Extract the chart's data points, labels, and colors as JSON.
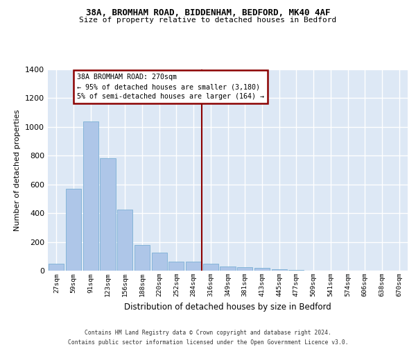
{
  "title1": "38A, BROMHAM ROAD, BIDDENHAM, BEDFORD, MK40 4AF",
  "title2": "Size of property relative to detached houses in Bedford",
  "xlabel": "Distribution of detached houses by size in Bedford",
  "ylabel": "Number of detached properties",
  "categories": [
    "27sqm",
    "59sqm",
    "91sqm",
    "123sqm",
    "156sqm",
    "188sqm",
    "220sqm",
    "252sqm",
    "284sqm",
    "316sqm",
    "349sqm",
    "381sqm",
    "413sqm",
    "445sqm",
    "477sqm",
    "509sqm",
    "541sqm",
    "574sqm",
    "606sqm",
    "638sqm",
    "670sqm"
  ],
  "values": [
    50,
    570,
    1040,
    780,
    425,
    180,
    125,
    65,
    65,
    50,
    30,
    25,
    20,
    10,
    7,
    0,
    0,
    0,
    0,
    0,
    0
  ],
  "bar_color": "#aec6e8",
  "bar_edge_color": "#7aafd4",
  "vline_x": 8.5,
  "vline_color": "#8b0000",
  "annotation_text": "38A BROMHAM ROAD: 270sqm\n← 95% of detached houses are smaller (3,180)\n5% of semi-detached houses are larger (164) →",
  "annotation_box_color": "#ffffff",
  "annotation_box_edge": "#8b0000",
  "ylim": [
    0,
    1400
  ],
  "yticks": [
    0,
    200,
    400,
    600,
    800,
    1000,
    1200,
    1400
  ],
  "bg_color": "#dde8f5",
  "grid_color": "#ffffff",
  "footer1": "Contains HM Land Registry data © Crown copyright and database right 2024.",
  "footer2": "Contains public sector information licensed under the Open Government Licence v3.0."
}
